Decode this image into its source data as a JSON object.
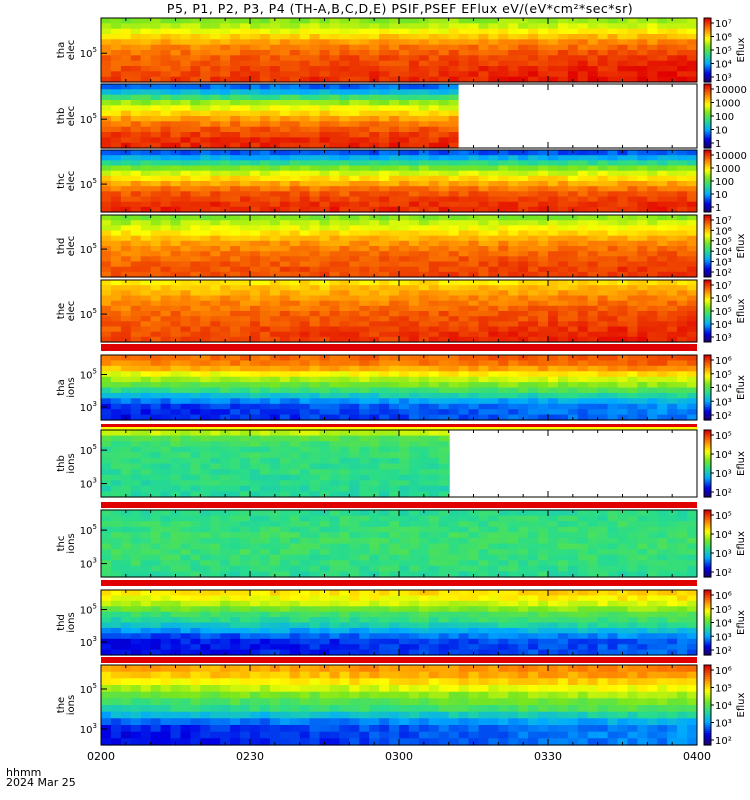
{
  "title": "P5, P1, P2, P3, P4 (TH-A,B,C,D,E) PSIF,PSEF EFlux eV/(eV*cm²*sec*sr)",
  "footer": {
    "line1": "hhmm",
    "line2": "2024 Mar 25"
  },
  "colors": {
    "bar_red": "#e00000",
    "bar_yellow": "#ffff00"
  },
  "chart_data": {
    "type": "heatmap",
    "colormap": "rainbow",
    "x_ticks": [
      "0200",
      "0230",
      "0300",
      "0330",
      "0400"
    ],
    "x_range_hours": [
      2.0,
      4.0
    ],
    "panels": [
      {
        "probe": "tha",
        "species": "elec",
        "ylabel": [
          "tha",
          "elec"
        ],
        "yticks": [
          {
            "base": "10",
            "exp": "5"
          }
        ],
        "cbar_label": "Eflux",
        "cbar_ticks": [
          "10⁷",
          "10⁶",
          "10⁵",
          "10⁴",
          "10³"
        ],
        "data_end": 4.0,
        "profile": [
          0.55,
          0.6,
          0.66,
          0.72,
          0.78,
          0.82,
          0.85,
          0.87,
          0.88,
          0.89,
          0.9,
          0.91
        ],
        "trend": 0.09
      },
      {
        "probe": "thb",
        "species": "elec",
        "ylabel": [
          "thb",
          "elec"
        ],
        "yticks": [
          {
            "base": "10",
            "exp": "5"
          }
        ],
        "cbar_label": "",
        "cbar_ticks": [
          "10000",
          "1000",
          "100",
          "10",
          "1"
        ],
        "data_end": 3.2,
        "profile": [
          0.22,
          0.32,
          0.45,
          0.58,
          0.66,
          0.73,
          0.8,
          0.85,
          0.89,
          0.92,
          0.94,
          0.95
        ],
        "trend": 0.0
      },
      {
        "probe": "thc",
        "species": "elec",
        "ylabel": [
          "thc",
          "elec"
        ],
        "yticks": [
          {
            "base": "10",
            "exp": "5"
          }
        ],
        "cbar_label": "",
        "cbar_ticks": [
          "10000",
          "1000",
          "100",
          "10",
          "1"
        ],
        "data_end": 4.0,
        "profile": [
          0.2,
          0.3,
          0.42,
          0.55,
          0.64,
          0.72,
          0.79,
          0.85,
          0.89,
          0.92,
          0.94,
          0.95
        ],
        "trend": 0.0
      },
      {
        "probe": "thd",
        "species": "elec",
        "ylabel": [
          "thd",
          "elec"
        ],
        "yticks": [
          {
            "base": "10",
            "exp": "5"
          }
        ],
        "cbar_label": "Eflux",
        "cbar_ticks": [
          "10⁷",
          "10⁶",
          "10⁵",
          "10⁴",
          "10³",
          "10²"
        ],
        "data_end": 4.0,
        "profile": [
          0.55,
          0.6,
          0.65,
          0.7,
          0.75,
          0.79,
          0.82,
          0.84,
          0.86,
          0.87,
          0.88,
          0.88
        ],
        "trend": 0.06
      },
      {
        "probe": "the",
        "species": "elec",
        "ylabel": [
          "the",
          "elec"
        ],
        "yticks": [
          {
            "base": "10",
            "exp": "5"
          }
        ],
        "cbar_label": "Eflux",
        "cbar_ticks": [
          "10⁷",
          "10⁶",
          "10⁵",
          "10⁴",
          "10³"
        ],
        "data_end": 4.0,
        "profile": [
          0.7,
          0.74,
          0.77,
          0.8,
          0.82,
          0.84,
          0.86,
          0.87,
          0.88,
          0.89,
          0.9,
          0.9
        ],
        "trend": 0.07
      },
      {
        "probe": "tha",
        "species": "ions",
        "ylabel": [
          "tha",
          "ions"
        ],
        "yticks": [
          {
            "base": "10",
            "exp": "5"
          },
          {
            "base": "10",
            "exp": "3"
          }
        ],
        "cbar_label": "Eflux",
        "cbar_ticks": [
          "10⁶",
          "10⁵",
          "10⁴",
          "10³",
          "10²"
        ],
        "data_end": 4.0,
        "profile": [
          0.85,
          0.82,
          0.76,
          0.66,
          0.58,
          0.5,
          0.42,
          0.32,
          0.22,
          0.16,
          0.14,
          0.13
        ],
        "trend": 0.12
      },
      {
        "probe": "thb",
        "species": "ions",
        "ylabel": [
          "thb",
          "ions"
        ],
        "yticks": [
          {
            "base": "10",
            "exp": "5"
          },
          {
            "base": "10",
            "exp": "3"
          }
        ],
        "cbar_label": "Eflux",
        "cbar_ticks": [
          "10⁵",
          "10⁴",
          "10³",
          "10²"
        ],
        "data_end": 3.17,
        "profile": [
          0.62,
          0.5,
          0.46,
          0.44,
          0.44,
          0.43,
          0.43,
          0.43,
          0.42,
          0.42,
          0.41,
          0.41
        ],
        "trend": 0.0
      },
      {
        "probe": "thc",
        "species": "ions",
        "ylabel": [
          "thc",
          "ions"
        ],
        "yticks": [
          {
            "base": "10",
            "exp": "5"
          },
          {
            "base": "10",
            "exp": "3"
          }
        ],
        "cbar_label": "Eflux",
        "cbar_ticks": [
          "10⁵",
          "10⁴",
          "10³",
          "10²"
        ],
        "data_end": 4.0,
        "profile": [
          0.42,
          0.43,
          0.44,
          0.44,
          0.45,
          0.45,
          0.45,
          0.45,
          0.44,
          0.44,
          0.43,
          0.42
        ],
        "trend": 0.0
      },
      {
        "probe": "thd",
        "species": "ions",
        "ylabel": [
          "thd",
          "ions"
        ],
        "yticks": [
          {
            "base": "10",
            "exp": "5"
          },
          {
            "base": "10",
            "exp": "3"
          }
        ],
        "cbar_label": "Eflux",
        "cbar_ticks": [
          "10⁶",
          "10⁵",
          "10⁴",
          "10³",
          "10²"
        ],
        "data_end": 4.0,
        "profile": [
          0.7,
          0.66,
          0.6,
          0.52,
          0.44,
          0.4,
          0.34,
          0.26,
          0.18,
          0.13,
          0.12,
          0.12
        ],
        "trend": 0.1
      },
      {
        "probe": "the",
        "species": "ions",
        "ylabel": [
          "the",
          "ions"
        ],
        "yticks": [
          {
            "base": "10",
            "exp": "5"
          },
          {
            "base": "10",
            "exp": "3"
          }
        ],
        "cbar_label": "Eflux",
        "cbar_ticks": [
          "10⁶",
          "10⁵",
          "10⁴",
          "10³",
          "10²"
        ],
        "data_end": 4.0,
        "profile": [
          0.78,
          0.74,
          0.68,
          0.6,
          0.52,
          0.46,
          0.4,
          0.3,
          0.2,
          0.14,
          0.13,
          0.12
        ],
        "trend": 0.14
      }
    ]
  }
}
